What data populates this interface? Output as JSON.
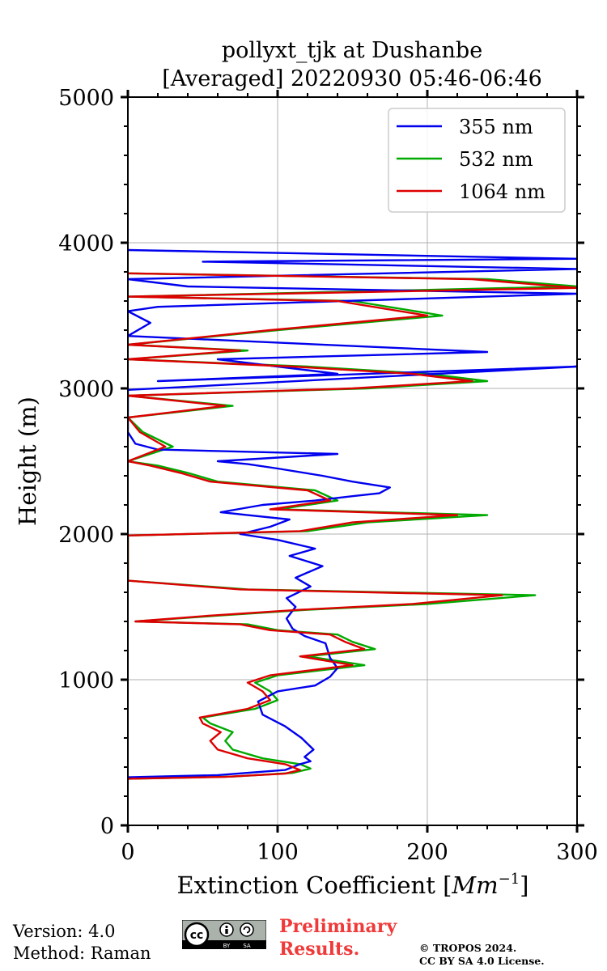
{
  "chart_data": {
    "type": "line",
    "title": [
      "pollyxt_tjk at Dushanbe",
      "[Averaged] 20220930 05:46-06:46"
    ],
    "xlabel": "Extinction Coefficient [Mm⁻¹]",
    "xlabel_parts": {
      "prefix": "Extinction Coefficient [",
      "unit": "Mm",
      "exponent": "−1",
      "suffix": "]"
    },
    "ylabel": "Height (m)",
    "xlim": [
      0,
      300
    ],
    "ylim": [
      0,
      5000
    ],
    "xticks": [
      0,
      100,
      200,
      300
    ],
    "yticks": [
      0,
      1000,
      2000,
      3000,
      4000,
      5000
    ],
    "grid": true,
    "legend_position": "top-right",
    "series": [
      {
        "name": "355 nm",
        "color": "#0000ee",
        "points": [
          [
            0,
            330
          ],
          [
            60,
            345
          ],
          [
            105,
            380
          ],
          [
            115,
            420
          ],
          [
            122,
            440
          ],
          [
            118,
            470
          ],
          [
            124,
            520
          ],
          [
            116,
            600
          ],
          [
            105,
            680
          ],
          [
            90,
            760
          ],
          [
            87,
            850
          ],
          [
            100,
            920
          ],
          [
            125,
            960
          ],
          [
            135,
            1020
          ],
          [
            140,
            1080
          ],
          [
            135,
            1150
          ],
          [
            132,
            1250
          ],
          [
            118,
            1300
          ],
          [
            110,
            1350
          ],
          [
            106,
            1420
          ],
          [
            112,
            1500
          ],
          [
            106,
            1560
          ],
          [
            122,
            1640
          ],
          [
            112,
            1700
          ],
          [
            130,
            1780
          ],
          [
            108,
            1850
          ],
          [
            125,
            1900
          ],
          [
            100,
            1960
          ],
          [
            75,
            2000
          ],
          [
            95,
            2050
          ],
          [
            108,
            2100
          ],
          [
            80,
            2130
          ],
          [
            62,
            2150
          ],
          [
            90,
            2200
          ],
          [
            125,
            2230
          ],
          [
            150,
            2260
          ],
          [
            168,
            2280
          ],
          [
            175,
            2320
          ],
          [
            150,
            2360
          ],
          [
            130,
            2400
          ],
          [
            100,
            2450
          ],
          [
            80,
            2480
          ],
          [
            60,
            2500
          ],
          [
            140,
            2550
          ],
          [
            20,
            2580
          ],
          [
            5,
            2620
          ],
          [
            0,
            2700
          ],
          [
            0,
            2900
          ],
          [
            0,
            2990
          ],
          [
            300,
            3150
          ],
          [
            20,
            3050
          ],
          [
            140,
            3100
          ],
          [
            60,
            3200
          ],
          [
            240,
            3250
          ],
          [
            0,
            3360
          ],
          [
            15,
            3450
          ],
          [
            0,
            3530
          ],
          [
            20,
            3560
          ],
          [
            300,
            3650
          ],
          [
            40,
            3700
          ],
          [
            0,
            3750
          ],
          [
            300,
            3820
          ],
          [
            50,
            3870
          ],
          [
            300,
            3890
          ],
          [
            0,
            3950
          ]
        ]
      },
      {
        "name": "532 nm",
        "color": "#00aa00",
        "points": [
          [
            0,
            320
          ],
          [
            70,
            335
          ],
          [
            110,
            360
          ],
          [
            122,
            390
          ],
          [
            115,
            420
          ],
          [
            90,
            460
          ],
          [
            70,
            520
          ],
          [
            65,
            580
          ],
          [
            70,
            640
          ],
          [
            55,
            700
          ],
          [
            50,
            740
          ],
          [
            85,
            800
          ],
          [
            100,
            860
          ],
          [
            95,
            920
          ],
          [
            85,
            980
          ],
          [
            100,
            1030
          ],
          [
            158,
            1100
          ],
          [
            120,
            1160
          ],
          [
            165,
            1210
          ],
          [
            150,
            1260
          ],
          [
            140,
            1310
          ],
          [
            100,
            1340
          ],
          [
            80,
            1380
          ],
          [
            5,
            1400
          ],
          [
            60,
            1440
          ],
          [
            120,
            1480
          ],
          [
            200,
            1520
          ],
          [
            272,
            1580
          ],
          [
            80,
            1620
          ],
          [
            0,
            1680
          ],
          [
            0,
            1990
          ],
          [
            120,
            2020
          ],
          [
            160,
            2080
          ],
          [
            240,
            2130
          ],
          [
            100,
            2170
          ],
          [
            140,
            2230
          ],
          [
            125,
            2300
          ],
          [
            60,
            2360
          ],
          [
            40,
            2420
          ],
          [
            20,
            2470
          ],
          [
            0,
            2500
          ],
          [
            30,
            2600
          ],
          [
            10,
            2700
          ],
          [
            0,
            2800
          ],
          [
            70,
            2880
          ],
          [
            0,
            2950
          ],
          [
            160,
            3000
          ],
          [
            240,
            3050
          ],
          [
            200,
            3100
          ],
          [
            120,
            3150
          ],
          [
            0,
            3200
          ],
          [
            80,
            3260
          ],
          [
            0,
            3300
          ],
          [
            100,
            3400
          ],
          [
            210,
            3500
          ],
          [
            150,
            3600
          ],
          [
            0,
            3630
          ],
          [
            300,
            3700
          ],
          [
            240,
            3750
          ],
          [
            0,
            3790
          ]
        ]
      },
      {
        "name": "1064 nm",
        "color": "#dd0000",
        "points": [
          [
            0,
            320
          ],
          [
            65,
            333
          ],
          [
            105,
            355
          ],
          [
            115,
            380
          ],
          [
            105,
            420
          ],
          [
            80,
            460
          ],
          [
            60,
            520
          ],
          [
            55,
            580
          ],
          [
            62,
            640
          ],
          [
            50,
            700
          ],
          [
            48,
            740
          ],
          [
            80,
            800
          ],
          [
            95,
            860
          ],
          [
            90,
            920
          ],
          [
            80,
            980
          ],
          [
            95,
            1030
          ],
          [
            150,
            1100
          ],
          [
            115,
            1160
          ],
          [
            158,
            1210
          ],
          [
            145,
            1260
          ],
          [
            135,
            1310
          ],
          [
            95,
            1340
          ],
          [
            75,
            1380
          ],
          [
            5,
            1400
          ],
          [
            55,
            1440
          ],
          [
            115,
            1480
          ],
          [
            190,
            1520
          ],
          [
            250,
            1580
          ],
          [
            75,
            1620
          ],
          [
            0,
            1680
          ],
          [
            0,
            1990
          ],
          [
            115,
            2020
          ],
          [
            150,
            2080
          ],
          [
            220,
            2130
          ],
          [
            95,
            2170
          ],
          [
            135,
            2230
          ],
          [
            120,
            2300
          ],
          [
            55,
            2360
          ],
          [
            35,
            2420
          ],
          [
            15,
            2470
          ],
          [
            0,
            2500
          ],
          [
            25,
            2600
          ],
          [
            8,
            2700
          ],
          [
            0,
            2800
          ],
          [
            65,
            2880
          ],
          [
            0,
            2950
          ],
          [
            150,
            3000
          ],
          [
            230,
            3050
          ],
          [
            190,
            3100
          ],
          [
            110,
            3150
          ],
          [
            0,
            3200
          ],
          [
            75,
            3260
          ],
          [
            0,
            3300
          ],
          [
            95,
            3400
          ],
          [
            200,
            3500
          ],
          [
            140,
            3600
          ],
          [
            0,
            3630
          ],
          [
            300,
            3690
          ],
          [
            230,
            3750
          ],
          [
            0,
            3790
          ]
        ]
      }
    ]
  },
  "footer": {
    "version": "Version: 4.0",
    "method": "Method: Raman",
    "preliminary": [
      "Preliminary",
      "Results."
    ],
    "copyright": [
      "© TROPOS 2024.",
      "CC BY SA 4.0 License."
    ],
    "license_badge": {
      "cc": "cc",
      "by": "BY",
      "sa": "SA"
    }
  }
}
